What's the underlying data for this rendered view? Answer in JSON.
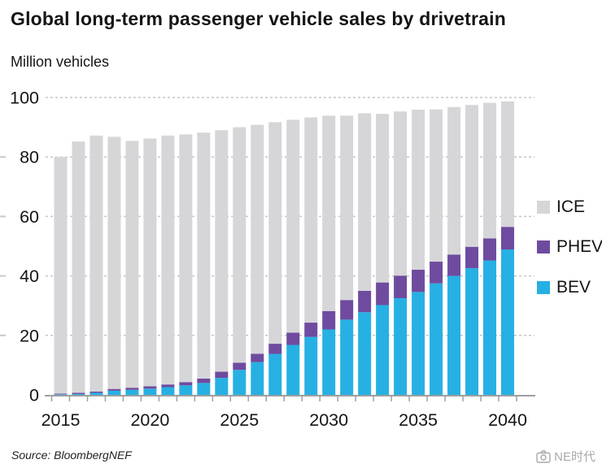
{
  "header": {
    "title": "Global long-term passenger vehicle sales by drivetrain",
    "subtitle": "Million vehicles"
  },
  "footer": {
    "source": "Source: BloombergNEF",
    "watermark": "NE时代"
  },
  "chart_data": {
    "type": "bar",
    "stacked": true,
    "title": "Global long-term passenger vehicle sales by drivetrain",
    "ylabel": "Million vehicles",
    "xlabel": "",
    "ylim": [
      0,
      100
    ],
    "yticks": [
      0,
      20,
      40,
      60,
      80,
      100
    ],
    "xticks": [
      2015,
      2020,
      2025,
      2030,
      2035,
      2040
    ],
    "grid": "dashed-horizontal",
    "legend_position": "right",
    "categories": [
      2015,
      2016,
      2017,
      2018,
      2019,
      2020,
      2021,
      2022,
      2023,
      2024,
      2025,
      2026,
      2027,
      2028,
      2029,
      2030,
      2031,
      2032,
      2033,
      2034,
      2035,
      2036,
      2037,
      2038,
      2039,
      2040
    ],
    "series": [
      {
        "name": "BEV",
        "color": "#27b0e3",
        "values": [
          0.2,
          0.3,
          0.7,
          1.4,
          1.7,
          2.1,
          2.6,
          3.2,
          4.0,
          5.7,
          8.4,
          11.0,
          13.8,
          16.8,
          19.5,
          22.0,
          25.3,
          27.8,
          30.2,
          32.5,
          34.6,
          37.5,
          40.0,
          42.6,
          45.2,
          48.9
        ]
      },
      {
        "name": "PHEV",
        "color": "#6f4b9f",
        "values": [
          0.2,
          0.4,
          0.4,
          0.6,
          0.7,
          0.8,
          0.9,
          1.1,
          1.5,
          2.1,
          2.4,
          2.8,
          3.4,
          4.1,
          4.8,
          6.2,
          6.6,
          7.2,
          7.6,
          7.6,
          7.5,
          7.3,
          7.2,
          7.2,
          7.4,
          7.6
        ]
      },
      {
        "name": "ICE",
        "color": "#d6d6d8",
        "values": [
          79.6,
          84.5,
          86.1,
          84.8,
          83.0,
          83.3,
          83.7,
          83.3,
          82.7,
          81.2,
          79.2,
          77.0,
          74.5,
          71.6,
          69.0,
          65.7,
          62.0,
          59.7,
          56.7,
          55.2,
          53.8,
          51.2,
          49.6,
          47.7,
          45.6,
          42.2
        ]
      }
    ],
    "totals_by_year": [
      80.0,
      85.2,
      87.2,
      86.8,
      85.4,
      86.2,
      87.2,
      87.6,
      88.2,
      89.0,
      90.0,
      90.8,
      91.7,
      92.5,
      93.3,
      93.9,
      93.9,
      94.7,
      94.5,
      95.3,
      95.9,
      96.0,
      96.8,
      97.5,
      98.2,
      98.7
    ],
    "colors": {
      "bev": "#27b0e3",
      "phev": "#6f4b9f",
      "ice": "#d6d6d8",
      "axis": "#9e9ea2",
      "grid": "#c6c6c8",
      "text": "#151515"
    }
  }
}
